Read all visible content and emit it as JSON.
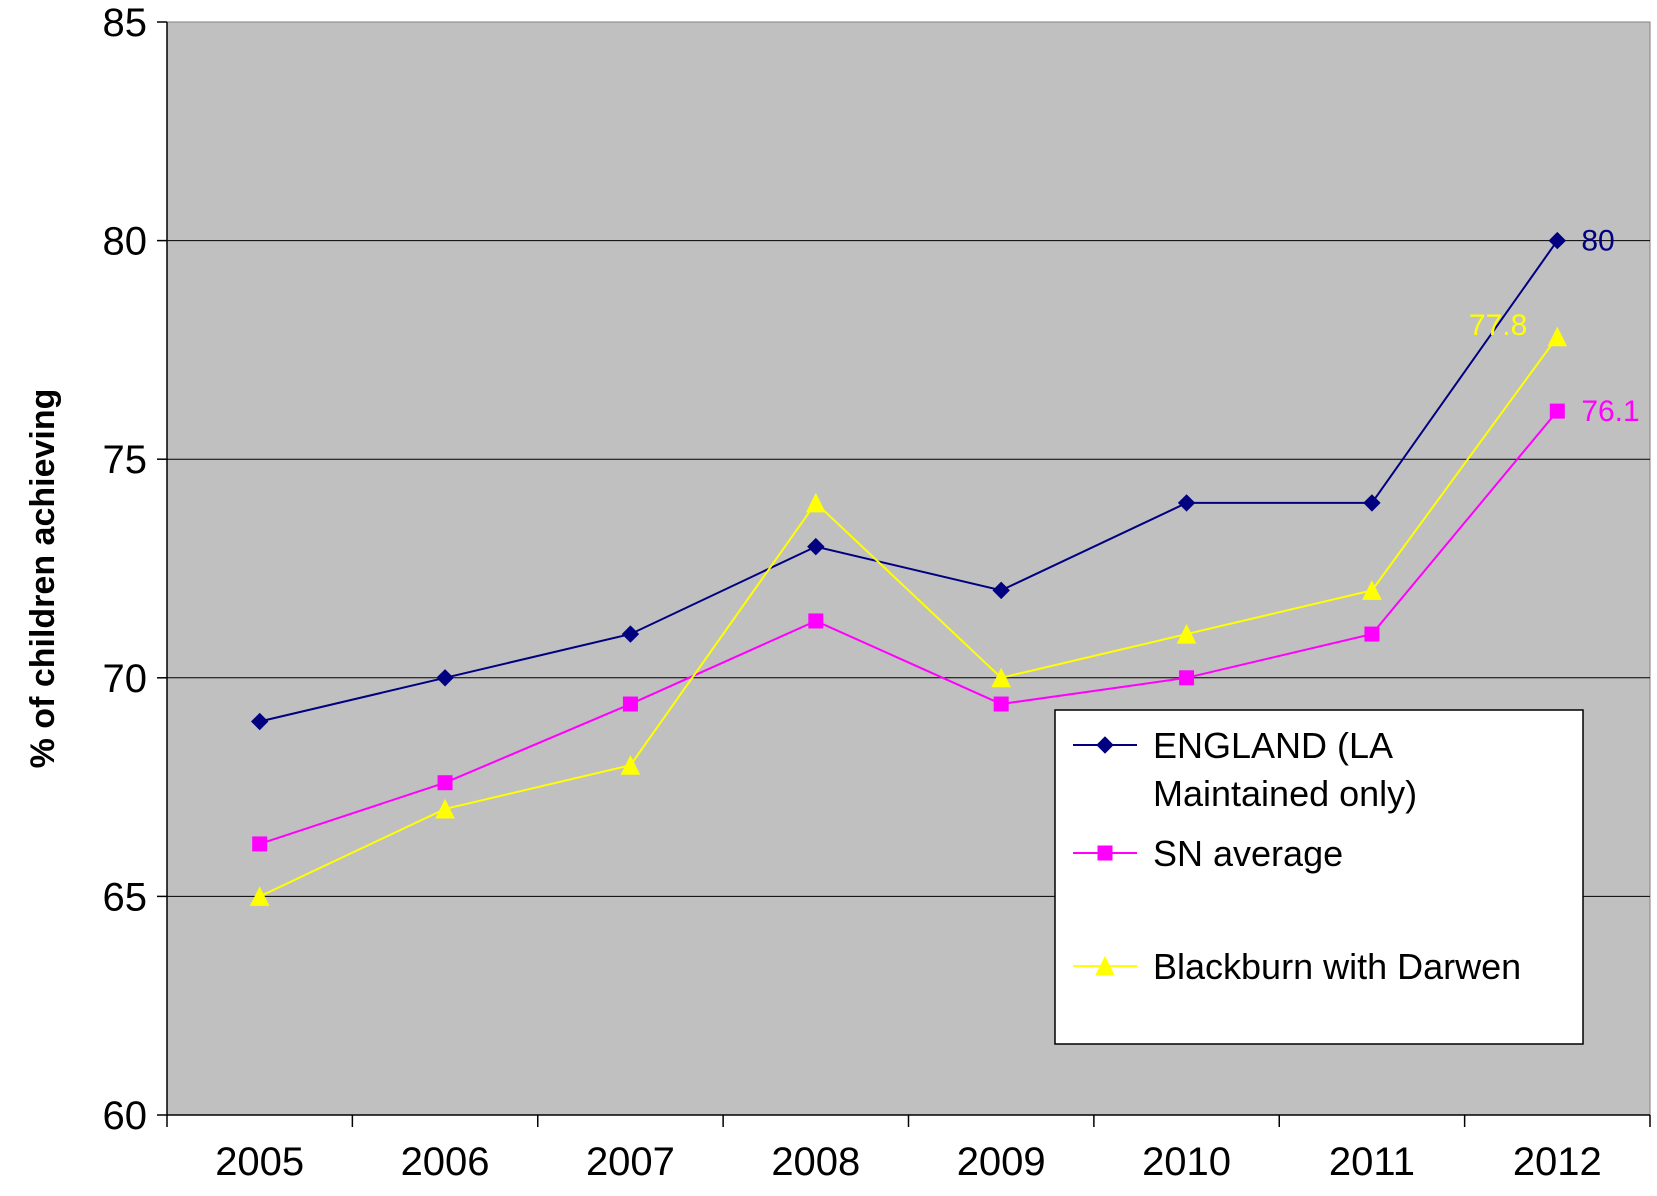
{
  "chart_data": {
    "type": "line",
    "categories": [
      "2005",
      "2006",
      "2007",
      "2008",
      "2009",
      "2010",
      "2011",
      "2012"
    ],
    "ylabel": "% of children achieving",
    "xlabel": "",
    "title": "",
    "ylim": [
      60,
      85
    ],
    "yticks": [
      "60",
      "65",
      "70",
      "75",
      "80",
      "85"
    ],
    "grid": "horizontal",
    "plot_background": "#c0c0c0",
    "legend_position": "lower-right",
    "series": [
      {
        "name_lines": [
          "ENGLAND (LA",
          "Maintained only)"
        ],
        "color": "#000080",
        "marker": "diamond",
        "values": [
          69,
          70,
          71,
          73,
          72,
          74,
          74,
          80
        ],
        "end_label": "80"
      },
      {
        "name_lines": [
          "SN average"
        ],
        "color": "#ff00ff",
        "marker": "square",
        "values": [
          66.2,
          67.6,
          69.4,
          71.3,
          69.4,
          70.0,
          71.0,
          76.1
        ],
        "end_label": "76.1"
      },
      {
        "name_lines": [
          "Blackburn with Darwen"
        ],
        "color": "#ffff00",
        "marker": "triangle",
        "values": [
          65,
          67,
          68,
          74,
          70,
          71,
          72,
          77.8
        ],
        "end_label": "77.8"
      }
    ]
  }
}
